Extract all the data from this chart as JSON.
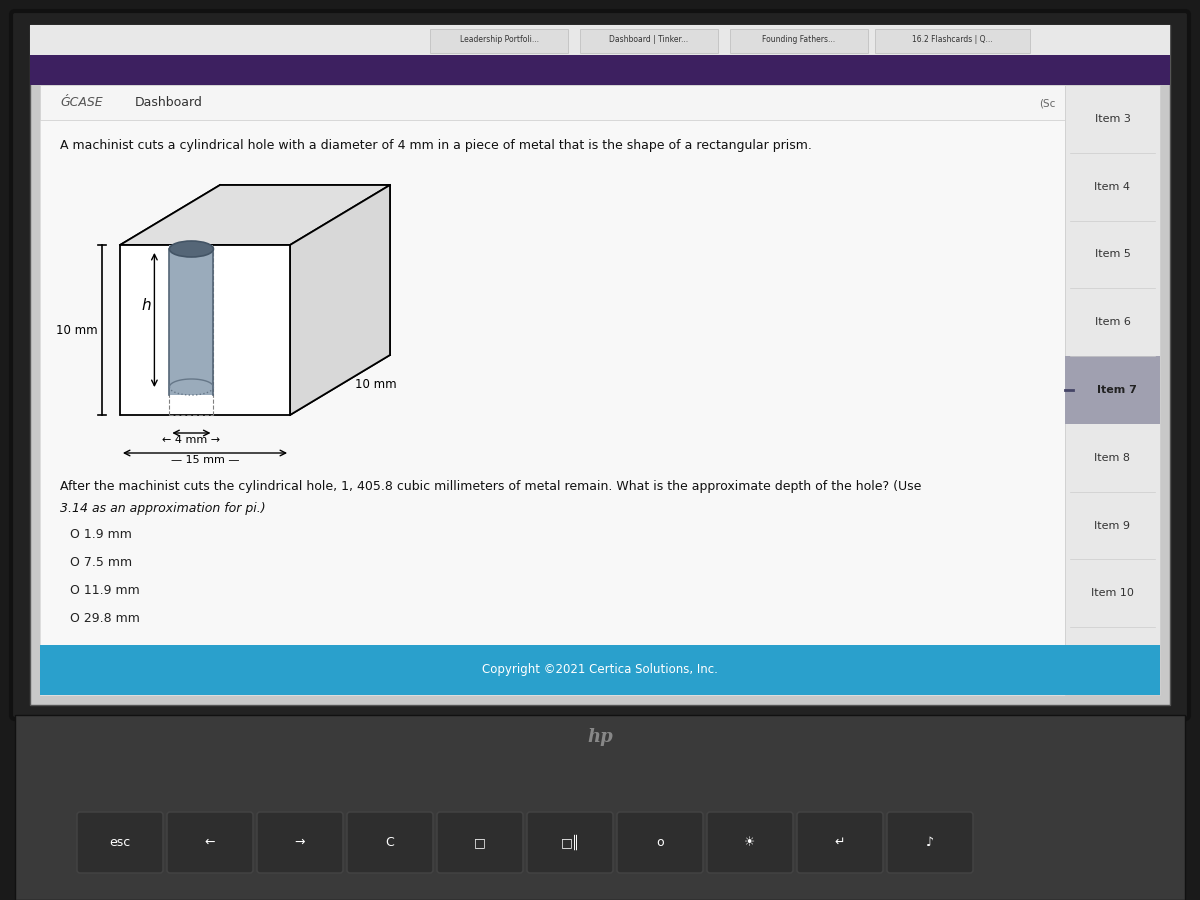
{
  "bg_outer": "#1a1a1a",
  "bg_bezel": "#222222",
  "bg_screen_gray": "#c8c8c8",
  "bg_browser_top": "#3d2060",
  "bg_content": "#f0f0f0",
  "bg_sidebar": "#e0e0e0",
  "bg_sidebar_item7": "#a0a0b0",
  "bg_footer": "#2aa0cc",
  "browser_tab_bar": "#e8e8e8",
  "title_bar_bg": "#f5f5f5",
  "title_bar_border": "#cccccc",
  "keyboard_body": "#3a3a3a",
  "key_face": "#2e2e2e",
  "key_border": "#444444",
  "hp_logo_color": "#888888",
  "question_text": "A machinist cuts a cylindrical hole with a diameter of 4 mm in a piece of metal that is the shape of a rectangular prism.",
  "after_text_line1": "After the machinist cuts the cylindrical hole, 1, 405.8 cubic millimeters of metal remain. What is the approximate depth of the hole? (Use",
  "after_text_line2": "3.14 as an approximation for pi.)",
  "choices": [
    "O 1.9 mm",
    "O 7.5 mm",
    "O 11.9 mm",
    "O 29.8 mm"
  ],
  "label_10mm_left": "10 mm",
  "label_4mm_text": "← 4 mm →",
  "label_10mm_right": "10 mm",
  "label_15mm": "←——— 15 mm ———→",
  "label_h": "h",
  "sidebar_items": [
    "Item 3",
    "Item 4",
    "Item 5",
    "Item 6",
    "Item 7",
    "Item 8",
    "Item 9",
    "Item 10"
  ],
  "copyright_text": "Copyright ©2021 Certica Solutions, Inc.",
  "case_text": "ǴCASE",
  "dashboard_text": "Dashboard",
  "sc_text": "(Sc",
  "browser_tabs": [
    "Leadership Portfoli...",
    "Dashboard | Tinker...",
    "Founding Fathers...",
    "16.2 Flashcards | Q..."
  ],
  "keyboard_keys": [
    "esc",
    "←",
    "→",
    "C",
    "□",
    "□║",
    "o",
    "☀",
    "↵",
    "♪"
  ]
}
